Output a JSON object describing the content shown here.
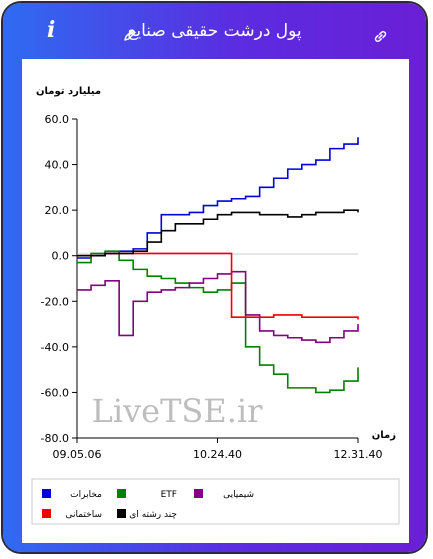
{
  "header": {
    "title": "پول درشت حقیقی صنایع",
    "info_icon": "i"
  },
  "watermark": "LiveTSE.ir",
  "chart_data": {
    "type": "line",
    "ylabel": "میلیارد تومان",
    "xlabel": "زمان",
    "ylim": [
      -80,
      60
    ],
    "y_ticks": [
      "60.0",
      "40.0",
      "20.0",
      "0.0",
      "-20.0",
      "-40.0",
      "-60.0",
      "-80.0"
    ],
    "x_ticks": [
      "09.05.06",
      "10.24.40",
      "12.31.40"
    ],
    "x": [
      0,
      5,
      10,
      15,
      20,
      25,
      30,
      35,
      40,
      45,
      50,
      55,
      60,
      65,
      70,
      75,
      80,
      85,
      90,
      95,
      100
    ],
    "series": [
      {
        "name": "مخابرات",
        "color": "#0000dd",
        "values": [
          -1,
          0,
          1,
          2,
          3,
          10,
          18,
          18,
          19,
          22,
          24,
          25,
          26,
          30,
          34,
          38,
          40,
          42,
          47,
          49,
          52
        ]
      },
      {
        "name": "ETF",
        "color": "#008000",
        "values": [
          -3,
          1,
          2,
          -2,
          -6,
          -9,
          -10,
          -12,
          -14,
          -16,
          -15,
          -12,
          -40,
          -48,
          -52,
          -58,
          -58,
          -60,
          -59,
          -55,
          -49
        ]
      },
      {
        "name": "شیمیایی",
        "color": "#800080",
        "values": [
          -15,
          -13,
          -11,
          -35,
          -20,
          -16,
          -15,
          -14,
          -12,
          -10,
          -8,
          -7,
          -26,
          -33,
          -35,
          -36,
          -37,
          -38,
          -36,
          -33,
          -30
        ]
      },
      {
        "name": "ساختمانی",
        "color": "#ee0000",
        "values": [
          0,
          0,
          1,
          1,
          1,
          1,
          1,
          1,
          1,
          1,
          1,
          -27,
          -27,
          -27,
          -26,
          -26,
          -27,
          -27,
          -27,
          -27,
          -28
        ]
      },
      {
        "name": "چند رشته ای",
        "color": "#000000",
        "values": [
          0,
          0,
          1,
          1,
          2,
          6,
          11,
          14,
          14,
          16,
          18,
          19,
          19,
          18,
          18,
          17,
          18,
          19,
          19,
          20,
          19
        ]
      }
    ],
    "legend_placement": "bottom",
    "grid": false
  }
}
